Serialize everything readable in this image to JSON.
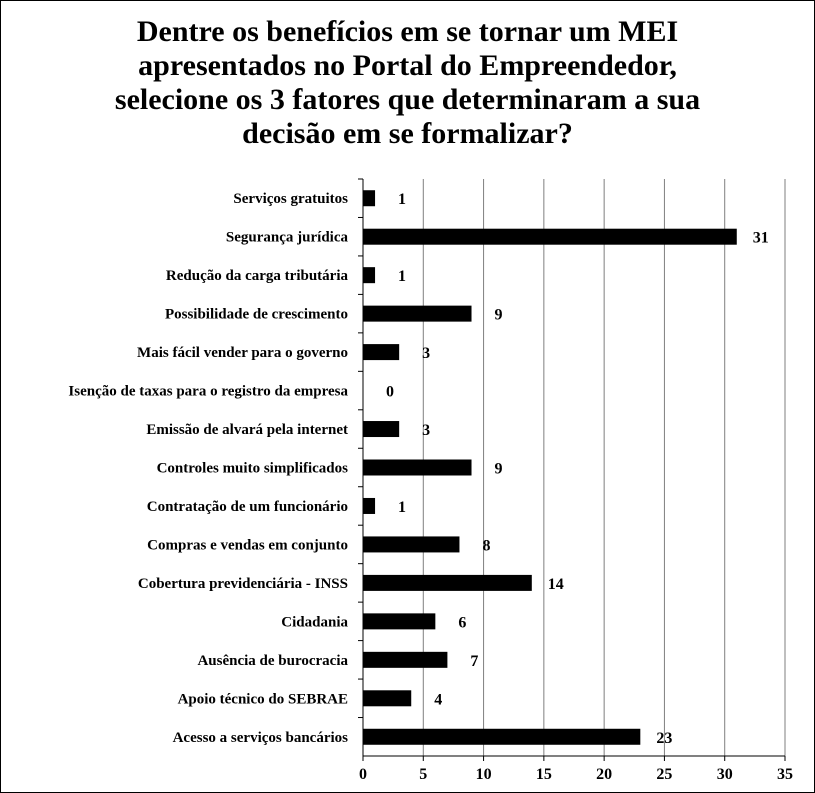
{
  "chart_data": {
    "type": "bar",
    "orientation": "horizontal",
    "title_lines": [
      "Dentre os benefícios em se tornar um MEI",
      "apresentados no Portal do Empreendedor,",
      "selecione os 3 fatores que determinaram a sua",
      "decisão em se formalizar?"
    ],
    "categories": [
      "Serviços gratuitos",
      "Segurança jurídica",
      "Redução da carga tributária",
      "Possibilidade de crescimento",
      "Mais fácil vender para o governo",
      "Isenção de taxas para o registro da empresa",
      "Emissão de alvará pela internet",
      "Controles muito simplificados",
      "Contratação de um funcionário",
      "Compras e vendas em conjunto",
      "Cobertura previdenciária - INSS",
      "Cidadania",
      "Ausência de burocracia",
      "Apoio técnico do SEBRAE",
      "Acesso a serviços bancários"
    ],
    "values": [
      1,
      31,
      1,
      9,
      3,
      0,
      3,
      9,
      1,
      8,
      14,
      6,
      7,
      4,
      23
    ],
    "xlim": [
      0,
      35
    ],
    "xticks": [
      0,
      5,
      10,
      15,
      20,
      25,
      30,
      35
    ],
    "grid": true,
    "legend": "none",
    "bar_color": "#000000"
  }
}
